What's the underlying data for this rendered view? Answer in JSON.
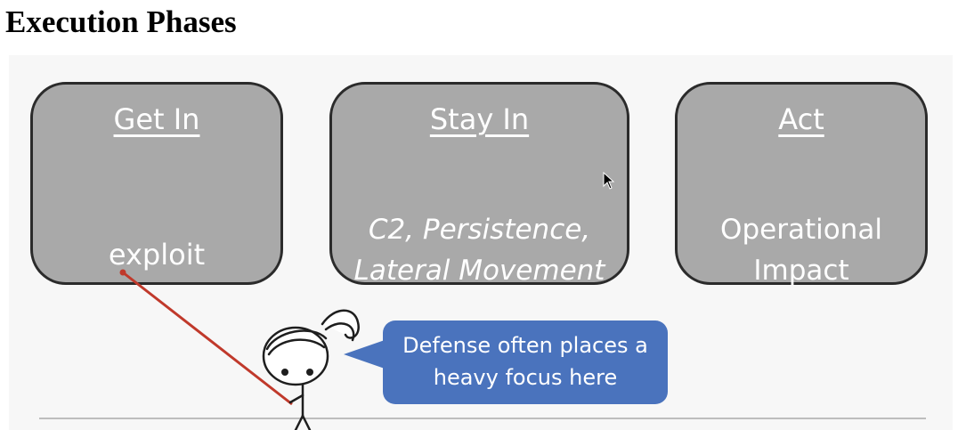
{
  "page": {
    "title": "Execution Phases"
  },
  "slide": {
    "phases": [
      {
        "title": "Get In",
        "description": [
          "exploit"
        ]
      },
      {
        "title": "Stay In",
        "description": [
          "C2, Persistence,",
          "Lateral Movement"
        ]
      },
      {
        "title": "Act",
        "description": [
          "Operational",
          "Impact"
        ]
      }
    ],
    "callout": {
      "lines": [
        "Defense often places a",
        "heavy focus here"
      ]
    }
  },
  "colors": {
    "box_fill": "#a9a9a9",
    "box_border": "#2b2b2b",
    "bubble_fill": "#4a73bd",
    "pointer_line": "#c0392b"
  },
  "icons": {
    "cursor": "arrow-cursor-icon",
    "character": "stick-figure-icon"
  }
}
